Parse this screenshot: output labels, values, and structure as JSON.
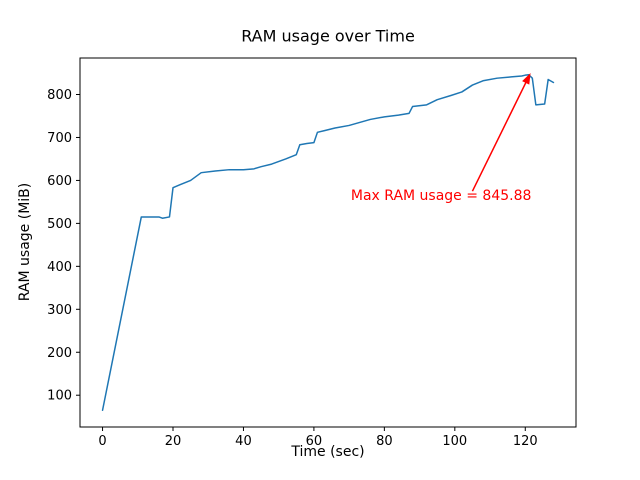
{
  "chart_data": {
    "type": "line",
    "title": "RAM usage over Time",
    "xlabel": "Time (sec)",
    "ylabel": "RAM usage (MiB)",
    "x": [
      0,
      11,
      16,
      17,
      19,
      20,
      22,
      25,
      28,
      32,
      36,
      40,
      43,
      45,
      48,
      52,
      55,
      56,
      58,
      60,
      61,
      63,
      66,
      70,
      73,
      76,
      80,
      84,
      87,
      88,
      92,
      95,
      99,
      102,
      105,
      108,
      112,
      116,
      119,
      120,
      121,
      122,
      123,
      125.5,
      126.5,
      128
    ],
    "y": [
      65,
      515,
      515,
      512,
      515,
      583,
      590,
      600,
      618,
      622,
      625,
      625,
      627,
      632,
      638,
      650,
      660,
      683,
      686,
      688,
      712,
      716,
      722,
      728,
      735,
      742,
      748,
      752,
      756,
      772,
      776,
      788,
      798,
      806,
      822,
      832,
      838,
      841,
      843,
      845,
      845.88,
      838,
      776,
      778,
      835,
      828
    ],
    "xlim": [
      -6.4,
      134.4
    ],
    "ylim": [
      26,
      885
    ],
    "xticks": [
      0,
      20,
      40,
      60,
      80,
      100,
      120
    ],
    "yticks": [
      100,
      200,
      300,
      400,
      500,
      600,
      700,
      800
    ],
    "line_color": "#1f77b4",
    "axis_color": "#000000",
    "annotation": {
      "text": "Max RAM usage = 845.88",
      "color": "#ff0000",
      "text_pos": [
        70.5,
        555
      ],
      "arrow_tail": [
        105,
        575
      ],
      "arrow_tip": [
        121.5,
        850
      ]
    },
    "legend": "none",
    "grid": false
  }
}
